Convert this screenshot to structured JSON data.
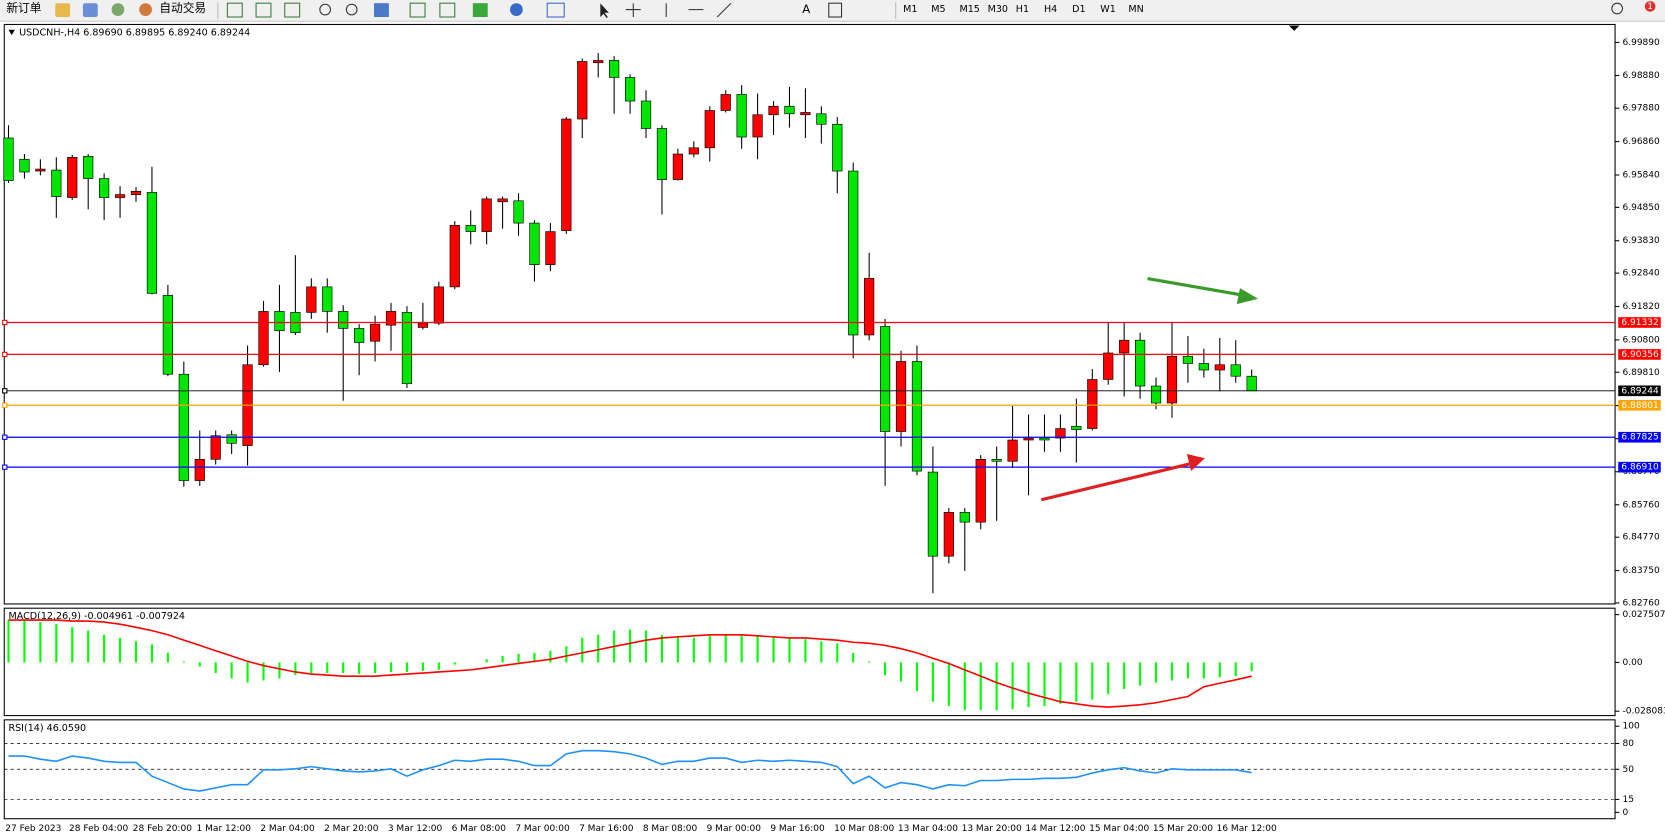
{
  "toolbar": {
    "new_order": "新订单",
    "auto_trading": "自动交易",
    "timeframes": [
      "M1",
      "M5",
      "M15",
      "M30",
      "H1",
      "H4",
      "D1",
      "W1",
      "MN"
    ],
    "badge": "1"
  },
  "chart_data": [
    {
      "type": "candlestick",
      "header": "USDCNH-,H4  6.89690 6.89895 6.89240 6.89244",
      "categories": [
        "27 Feb 2023",
        null,
        null,
        null,
        "28 Feb 04:00",
        null,
        null,
        null,
        "28 Feb 20:00",
        null,
        null,
        null,
        "1 Mar 12:00",
        null,
        null,
        null,
        "2 Mar 04:00",
        null,
        null,
        null,
        "2 Mar 20:00",
        null,
        null,
        null,
        "3 Mar 12:00",
        null,
        null,
        null,
        "6 Mar 08:00",
        null,
        null,
        null,
        "7 Mar 00:00",
        null,
        null,
        null,
        "7 Mar 16:00",
        null,
        null,
        null,
        "8 Mar 08:00",
        null,
        null,
        null,
        "9 Mar 00:00",
        null,
        null,
        null,
        "9 Mar 16:00",
        null,
        null,
        null,
        "10 Mar 08:00",
        null,
        null,
        null,
        "13 Mar 04:00",
        null,
        null,
        null,
        "13 Mar 20:00",
        null,
        null,
        null,
        "14 Mar 12:00",
        null,
        null,
        null,
        "15 Mar 04:00",
        null,
        null,
        null,
        "15 Mar 20:00",
        null,
        null,
        null,
        "16 Mar 12:00",
        null,
        null
      ],
      "open": [
        6.9697,
        6.9632,
        6.9596,
        6.9599,
        6.9515,
        6.9641,
        6.9573,
        6.9515,
        6.9524,
        6.9531,
        6.9216,
        6.8975,
        6.865,
        6.8715,
        6.879,
        6.8757,
        6.9004,
        6.9167,
        6.9164,
        6.9164,
        6.9242,
        6.9167,
        6.9115,
        6.9076,
        6.9125,
        6.9164,
        6.9118,
        6.9131,
        6.9242,
        6.943,
        6.9411,
        6.9502,
        6.9505,
        6.9437,
        6.931,
        6.9414,
        6.9755,
        6.9927,
        6.9934,
        6.9882,
        6.981,
        6.9726,
        6.957,
        6.9648,
        6.9667,
        6.9781,
        6.983,
        6.97,
        6.9768,
        6.9794,
        6.9768,
        6.9771,
        6.9739,
        6.9596,
        6.9095,
        6.9121,
        6.88,
        6.9014,
        6.8676,
        6.8419,
        6.8553,
        6.8523,
        6.8715,
        6.8709,
        6.8774,
        6.878,
        6.878,
        6.8816,
        6.8809,
        6.8959,
        6.904,
        6.9079,
        6.8939,
        6.8887,
        6.903,
        6.9008,
        6.8988,
        6.9004,
        6.8969
      ],
      "high": [
        6.9736,
        6.9648,
        6.9632,
        6.9638,
        6.9645,
        6.9648,
        6.9589,
        6.955,
        6.9547,
        6.9609,
        6.9248,
        6.9014,
        6.8803,
        6.8803,
        6.8803,
        6.9063,
        6.9199,
        6.9248,
        6.9339,
        6.9268,
        6.9268,
        6.9186,
        6.9128,
        6.9154,
        6.9193,
        6.9183,
        6.9193,
        6.9258,
        6.9443,
        6.9476,
        6.9518,
        6.9518,
        6.9528,
        6.9446,
        6.9437,
        6.9761,
        6.994,
        6.9957,
        6.9947,
        6.9892,
        6.9843,
        6.9736,
        6.9664,
        6.9687,
        6.9794,
        6.9843,
        6.9859,
        6.9833,
        6.981,
        6.9853,
        6.9849,
        6.9794,
        6.9761,
        6.9622,
        6.9346,
        6.9144,
        6.9047,
        6.9063,
        6.8754,
        6.8566,
        6.8566,
        6.8728,
        6.8754,
        6.8878,
        6.8852,
        6.8852,
        6.8852,
        6.89,
        6.8991,
        6.9134,
        6.9134,
        6.9102,
        6.8965,
        6.9134,
        6.9092,
        6.9053,
        6.9086,
        6.9079,
        6.89895
      ],
      "low": [
        6.956,
        6.9573,
        6.9583,
        6.9453,
        6.9508,
        6.9479,
        6.9446,
        6.9453,
        6.9502,
        6.9219,
        6.8969,
        6.8631,
        6.8634,
        6.8699,
        6.8731,
        6.8696,
        6.8998,
        6.8982,
        6.9095,
        6.9144,
        6.9102,
        6.8894,
        6.8972,
        6.9014,
        6.9047,
        6.8933,
        6.9112,
        6.9125,
        6.9235,
        6.9372,
        6.9372,
        6.942,
        6.9398,
        6.9258,
        6.929,
        6.9404,
        6.9697,
        6.9882,
        6.9771,
        6.9771,
        6.9697,
        6.9463,
        6.9567,
        6.9638,
        6.9625,
        6.9775,
        6.9664,
        6.9632,
        6.9706,
        6.9729,
        6.9697,
        6.968,
        6.9528,
        6.9024,
        6.9079,
        6.8634,
        6.8754,
        6.8666,
        6.8306,
        6.8397,
        6.8374,
        6.8501,
        6.8527,
        6.8689,
        6.8605,
        6.8738,
        6.8738,
        6.8705,
        6.8803,
        6.8943,
        6.8907,
        6.89,
        6.8868,
        6.8842,
        6.8949,
        6.8965,
        6.8923,
        6.8949,
        6.8924
      ],
      "close": [
        6.9567,
        6.9593,
        6.9602,
        6.9518,
        6.9638,
        6.9573,
        6.9515,
        6.9524,
        6.9534,
        6.9222,
        6.8975,
        6.865,
        6.8715,
        6.8787,
        6.8764,
        6.9004,
        6.9167,
        6.9108,
        6.9102,
        6.9242,
        6.9167,
        6.9115,
        6.9072,
        6.9128,
        6.9167,
        6.8946,
        6.9131,
        6.9242,
        6.943,
        6.9411,
        6.9511,
        6.9511,
        6.9437,
        6.931,
        6.9411,
        6.9755,
        6.9931,
        6.9934,
        6.9882,
        6.981,
        6.9726,
        6.957,
        6.9648,
        6.9667,
        6.9781,
        6.983,
        6.97,
        6.9768,
        6.9794,
        6.9771,
        6.9775,
        6.9739,
        6.9596,
        6.9095,
        6.9268,
        6.88,
        6.9014,
        6.8679,
        6.8419,
        6.8553,
        6.8523,
        6.8715,
        6.8709,
        6.8774,
        6.878,
        6.8774,
        6.8809,
        6.8806,
        6.8959,
        6.904,
        6.9079,
        6.8939,
        6.8887,
        6.903,
        6.9008,
        6.8988,
        6.9004,
        6.8969,
        6.89244
      ],
      "up_color": "#ff0000",
      "down_color": "#00e600",
      "ylim": [
        6.8273,
        7.0044
      ],
      "yticks": [
        {
          "value": 6.9989,
          "label": "6.99890"
        },
        {
          "value": 6.9888,
          "label": "6.98880"
        },
        {
          "value": 6.9788,
          "label": "6.97880"
        },
        {
          "value": 6.9686,
          "label": "6.96860"
        },
        {
          "value": 6.9584,
          "label": "6.95840"
        },
        {
          "value": 6.9485,
          "label": "6.94850"
        },
        {
          "value": 6.9383,
          "label": "6.93830"
        },
        {
          "value": 6.9284,
          "label": "6.92840"
        },
        {
          "value": 6.9182,
          "label": "6.91820"
        },
        {
          "value": 6.908,
          "label": "6.90800"
        },
        {
          "value": 6.8981,
          "label": "6.89810"
        },
        {
          "value": 6.8879,
          "label": "6.88790"
        },
        {
          "value": 6.8778,
          "label": "6.87780"
        },
        {
          "value": 6.8677,
          "label": "6.86770"
        },
        {
          "value": 6.8576,
          "label": "6.85760"
        },
        {
          "value": 6.8477,
          "label": "6.84770"
        },
        {
          "value": 6.8375,
          "label": "6.83750"
        },
        {
          "value": 6.8276,
          "label": "6.82760"
        }
      ],
      "levels": [
        {
          "value": 6.91332,
          "color": "#ff0000"
        },
        {
          "value": 6.90356,
          "color": "#ff0000"
        },
        {
          "value": 6.89244,
          "color": "#000000"
        },
        {
          "value": 6.88801,
          "color": "#ffa500"
        },
        {
          "value": 6.87825,
          "color": "#0000ff"
        },
        {
          "value": 6.8691,
          "label": "6.86910",
          "color": "#0000ff"
        }
      ]
    },
    {
      "type": "macd",
      "header": "MACD(12,26,9) -0.004961 -0.007924",
      "histogram": {
        "color": "#00ff00",
        "values": [
          0.0244,
          0.0244,
          0.0232,
          0.022,
          0.0202,
          0.0183,
          0.0159,
          0.0141,
          0.0122,
          0.0104,
          0.0055,
          0.0006,
          -0.0024,
          -0.0061,
          -0.0092,
          -0.0116,
          -0.0104,
          -0.0092,
          -0.0073,
          -0.0061,
          -0.0061,
          -0.0061,
          -0.0067,
          -0.0061,
          -0.0055,
          -0.0055,
          -0.0049,
          -0.0043,
          -0.0012,
          0,
          0.0018,
          0.0037,
          0.0049,
          0.0055,
          0.0067,
          0.0092,
          0.0141,
          0.0159,
          0.0183,
          0.0189,
          0.0183,
          0.0159,
          0.0153,
          0.0141,
          0.0153,
          0.0159,
          0.0153,
          0.0153,
          0.0147,
          0.0141,
          0.0134,
          0.0122,
          0.011,
          0.0055,
          0.0006,
          -0.0073,
          -0.011,
          -0.0165,
          -0.0226,
          -0.0251,
          -0.0275,
          -0.0275,
          -0.0275,
          -0.0269,
          -0.0257,
          -0.0251,
          -0.0238,
          -0.0226,
          -0.0214,
          -0.0183,
          -0.0153,
          -0.0134,
          -0.0116,
          -0.0104,
          -0.0092,
          -0.0092,
          -0.0086,
          -0.0079,
          -0.004961
        ]
      },
      "signal": {
        "color": "#ff0000",
        "values": [
          0.0244,
          0.0244,
          0.0244,
          0.0244,
          0.0238,
          0.0238,
          0.0232,
          0.022,
          0.0202,
          0.0183,
          0.0159,
          0.0128,
          0.0098,
          0.0067,
          0.0037,
          0.0006,
          -0.0018,
          -0.0037,
          -0.0055,
          -0.0067,
          -0.0073,
          -0.0079,
          -0.0079,
          -0.0079,
          -0.0073,
          -0.0067,
          -0.0061,
          -0.0055,
          -0.0049,
          -0.0043,
          -0.0031,
          -0.0018,
          -0.0006,
          0.0006,
          0.0018,
          0.0037,
          0.0055,
          0.0073,
          0.0092,
          0.011,
          0.0128,
          0.0141,
          0.0147,
          0.0153,
          0.0159,
          0.0159,
          0.0159,
          0.0153,
          0.0147,
          0.0141,
          0.0141,
          0.0134,
          0.0128,
          0.0116,
          0.011,
          0.0098,
          0.0079,
          0.0055,
          0.0024,
          -0.0006,
          -0.0043,
          -0.0079,
          -0.0116,
          -0.0147,
          -0.0177,
          -0.0202,
          -0.0226,
          -0.0238,
          -0.0251,
          -0.0257,
          -0.0251,
          -0.0244,
          -0.0232,
          -0.0214,
          -0.0196,
          -0.014,
          -0.012,
          -0.01,
          -0.007924
        ]
      },
      "ylim": [
        -0.0306,
        0.0312
      ],
      "yticks": [
        0.027507,
        {
          "value": 0,
          "label": "0.00"
        },
        -0.028083
      ]
    },
    {
      "type": "rsi",
      "header": "RSI(14) 46.0590",
      "color": "#1e90ff",
      "values": [
        65.4,
        65.4,
        61.7,
        59.3,
        65.4,
        63.0,
        59.3,
        58.0,
        58.0,
        42.0,
        34.6,
        27.2,
        24.7,
        28.4,
        32.1,
        32.1,
        49.4,
        49.4,
        50.6,
        53.1,
        50.6,
        48.1,
        46.9,
        48.1,
        50.6,
        42.0,
        49.4,
        54.3,
        60.5,
        59.3,
        61.7,
        61.7,
        59.3,
        54.3,
        54.3,
        67.9,
        71.6,
        71.6,
        70.4,
        67.9,
        63.0,
        55.6,
        59.3,
        59.3,
        63.0,
        63.0,
        58.0,
        60.5,
        59.3,
        60.5,
        59.3,
        58.0,
        53.1,
        33.3,
        42.0,
        28.4,
        34.6,
        32.1,
        27.2,
        32.1,
        30.9,
        37.0,
        37.0,
        38.3,
        38.3,
        39.5,
        39.5,
        40.7,
        45.7,
        49.4,
        51.9,
        48.1,
        45.7,
        50.6,
        49.4,
        49.4,
        49.4,
        49.4,
        46.059
      ],
      "ylim": [
        -7.4,
        107.4
      ],
      "yticks": [
        100,
        80,
        50,
        15,
        0
      ],
      "levels": [
        80,
        50,
        15
      ]
    }
  ]
}
